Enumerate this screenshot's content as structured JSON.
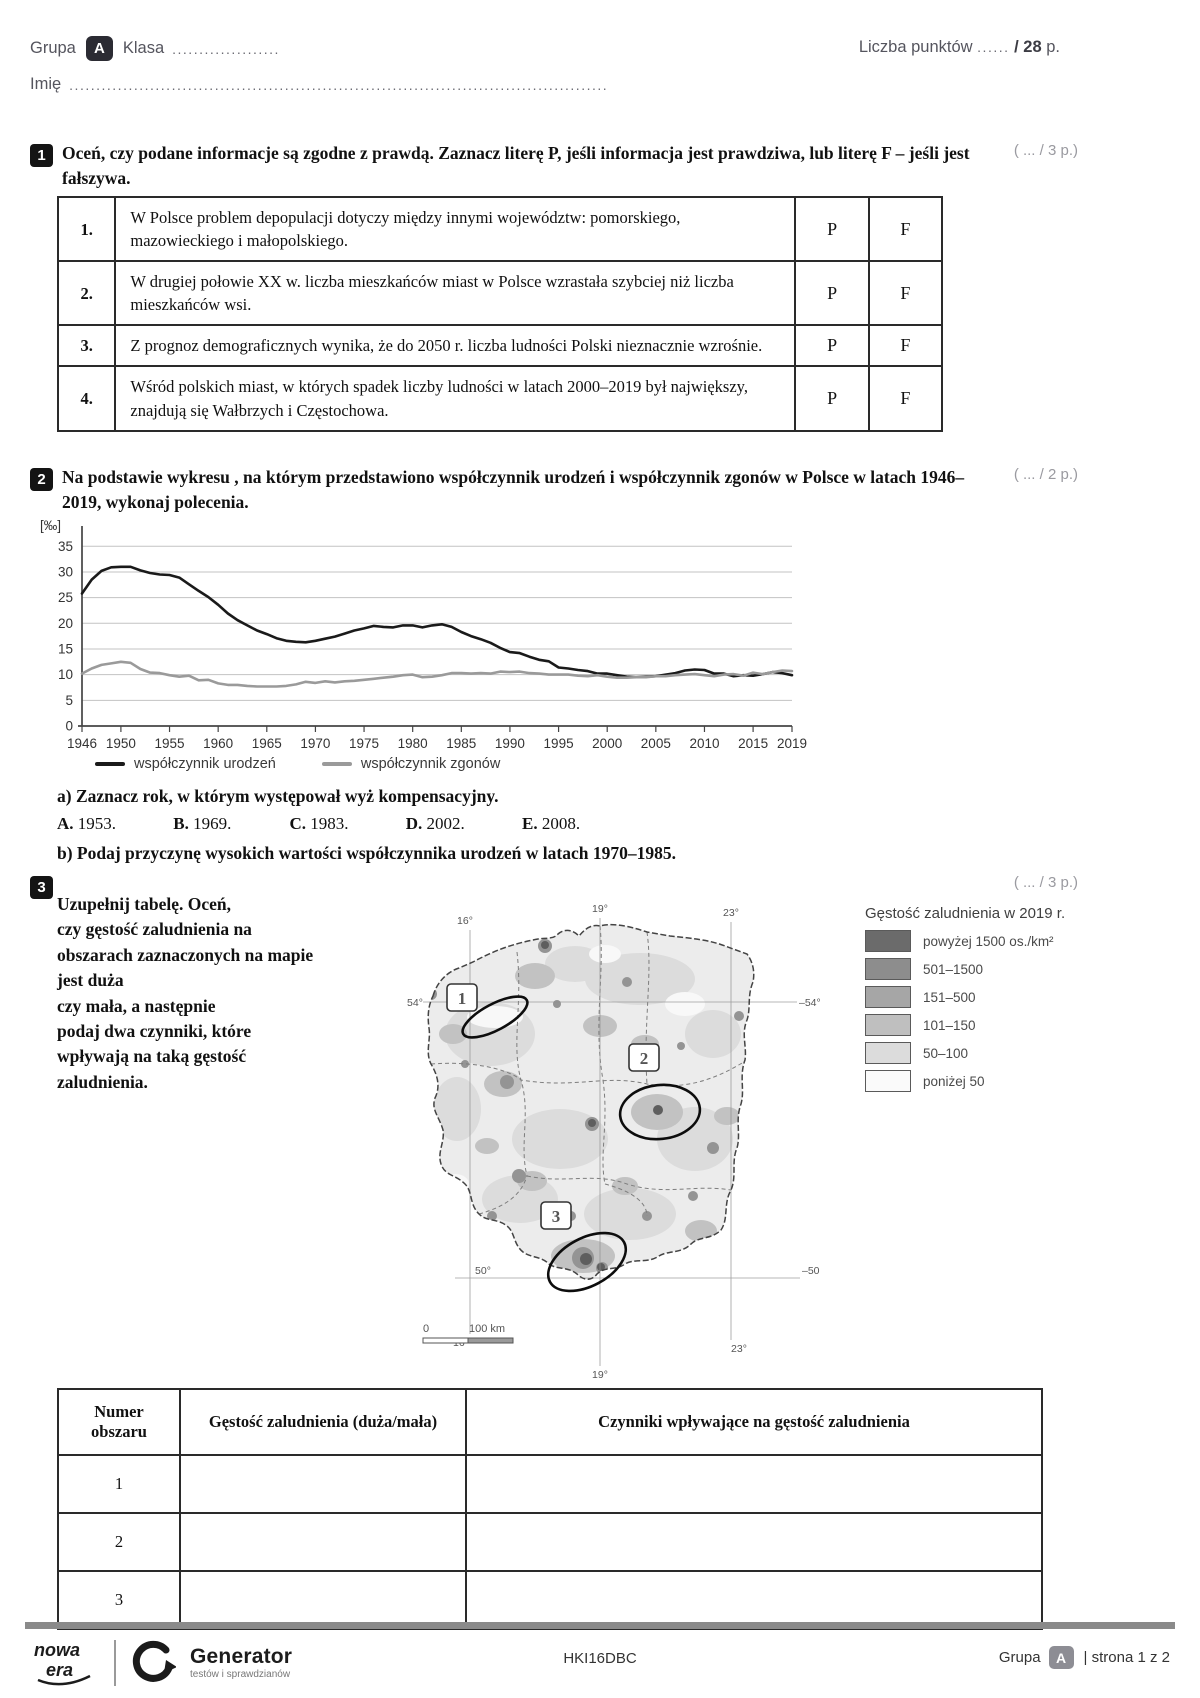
{
  "header": {
    "group_label": "Grupa",
    "group_value": "A",
    "class_label": "Klasa",
    "class_dots": "....................",
    "points_prefix": "Liczba punktów",
    "points_dots": "......",
    "points_frac": "/ 28",
    "points_suffix": "p.",
    "name_label": "Imię",
    "name_dots": "...................................................................................................."
  },
  "q1": {
    "number": "1",
    "points": "( ... / 3 p.)",
    "text": "Oceń, czy podane informacje są zgodne z prawdą. Zaznacz literę P, jeśli informacja jest prawdziwa, lub literę F – jeśli jest fałszywa.",
    "rows": [
      {
        "num": "1.",
        "text": "W Polsce problem depopulacji dotyczy między innymi województw: pomorskiego, mazowieckiego i małopolskiego.",
        "p": "P",
        "f": "F"
      },
      {
        "num": "2.",
        "text": "W drugiej połowie XX w. liczba mieszkańców miast w Polsce wzrastała szybciej niż liczba mieszkańców wsi.",
        "p": "P",
        "f": "F"
      },
      {
        "num": "3.",
        "text": "Z prognoz demograficznych wynika, że do 2050 r. liczba ludności Polski nieznacznie wzrośnie.",
        "p": "P",
        "f": "F"
      },
      {
        "num": "4.",
        "text": "Wśród polskich miast, w których spadek liczby ludności w latach 2000–2019 był największy, znajdują się Wałbrzych i Częstochowa.",
        "p": "P",
        "f": "F"
      }
    ]
  },
  "q2": {
    "number": "2",
    "points": "( ... / 2 p.)",
    "text": "Na podstawie wykresu , na którym przedstawiono współczynnik urodzeń i współczynnik zgonów w Polsce w latach 1946–2019, wykonaj polecenia.",
    "a_text": "a) Zaznacz rok, w którym występował wyż kompensacyjny.",
    "options": [
      {
        "letter": "A.",
        "value": "1953."
      },
      {
        "letter": "B.",
        "value": "1969."
      },
      {
        "letter": "C.",
        "value": "1983."
      },
      {
        "letter": "D.",
        "value": "2002."
      },
      {
        "letter": "E.",
        "value": "2008."
      }
    ],
    "b_text": "b) Podaj przyczynę wysokich wartości współczynnika urodzeń w latach 1970–1985."
  },
  "chart_data": {
    "type": "line",
    "title": "Współczynnik urodzeń i współczynnik zgonów w Polsce w latach 1946–2019",
    "unit_label": "[‰]",
    "x_start": 1946,
    "x_ticks": [
      1946,
      1950,
      1955,
      1960,
      1965,
      1970,
      1975,
      1980,
      1985,
      1990,
      1995,
      2000,
      2005,
      2010,
      2015,
      2019
    ],
    "y_ticks": [
      0,
      5,
      10,
      15,
      20,
      25,
      30,
      35
    ],
    "ylim": [
      0,
      37
    ],
    "grid": true,
    "legend_position": "bottom",
    "series": [
      {
        "name": "współczynnik urodzeń",
        "color": "#1a1a1a",
        "values": [
          25.8,
          28.5,
          30.2,
          30.9,
          31.0,
          31.0,
          30.3,
          29.8,
          29.5,
          29.4,
          28.9,
          27.6,
          26.3,
          25.1,
          23.6,
          21.9,
          20.6,
          19.6,
          18.6,
          17.9,
          17.1,
          16.6,
          16.4,
          16.3,
          16.6,
          17.0,
          17.4,
          18.0,
          18.6,
          19.0,
          19.5,
          19.3,
          19.2,
          19.6,
          19.6,
          19.2,
          19.6,
          19.8,
          19.3,
          18.3,
          17.5,
          16.9,
          16.2,
          15.2,
          14.4,
          14.2,
          13.5,
          12.9,
          12.6,
          11.4,
          11.2,
          10.9,
          10.7,
          10.2,
          10.2,
          9.9,
          9.6,
          9.5,
          9.6,
          9.7,
          10.0,
          10.3,
          10.8,
          11.0,
          10.9,
          10.2,
          10.2,
          9.7,
          9.9,
          9.8,
          10.1,
          10.5,
          10.3,
          9.9
        ]
      },
      {
        "name": "współczynnik zgonów",
        "color": "#9a9a9a",
        "values": [
          10.2,
          11.2,
          11.9,
          12.2,
          12.5,
          12.3,
          11.1,
          10.4,
          10.3,
          9.9,
          9.6,
          9.8,
          8.9,
          9.0,
          8.3,
          8.0,
          8.0,
          7.8,
          7.7,
          7.7,
          7.7,
          7.8,
          8.1,
          8.6,
          8.4,
          8.7,
          8.5,
          8.7,
          8.8,
          9.0,
          9.2,
          9.4,
          9.6,
          9.9,
          10.0,
          9.5,
          9.6,
          9.9,
          10.3,
          10.3,
          10.2,
          10.3,
          10.2,
          10.6,
          10.5,
          10.6,
          10.3,
          10.2,
          10.0,
          10.0,
          10.0,
          9.8,
          9.7,
          9.9,
          9.6,
          9.4,
          9.4,
          9.5,
          9.5,
          9.7,
          9.7,
          9.9,
          10.0,
          10.1,
          9.9,
          9.7,
          10.0,
          10.1,
          9.8,
          10.4,
          10.1,
          10.5,
          10.8,
          10.7
        ]
      }
    ]
  },
  "q3": {
    "number": "3",
    "points": "( ... / 3 p.)",
    "text_lines": [
      "Uzupełnij tabelę. Oceń,",
      "czy gęstość zaludnienia na",
      "obszarach zaznaczonych na mapie",
      "jest duża",
      "czy mała, a następnie",
      "podaj dwa czynniki, które",
      "wpływają na taką gęstość",
      "zaludnienia."
    ],
    "map": {
      "markers": [
        "1",
        "2",
        "3"
      ],
      "coord_labels": {
        "top_left_meridian": "16°",
        "top_meridian": "19°",
        "top_right_meridian": "23°",
        "left_parallel_top": "54°",
        "right_parallel_top": "–54°",
        "left_parallel_bottom": "50°",
        "right_parallel_bottom": "–50°",
        "bottom_left_meridian": "16°",
        "bottom_meridian": "19°",
        "bottom_right_meridian": "23°"
      },
      "scale": {
        "zero": "0",
        "hundred": "100 km"
      }
    },
    "legend": {
      "title": "Gęstość zaludnienia w 2019 r.",
      "items": [
        {
          "label": "powyżej 1500 os./km²",
          "color": "#6b6b6b"
        },
        {
          "label": "501–1500",
          "color": "#8d8d8d"
        },
        {
          "label": "151–500",
          "color": "#a6a6a6"
        },
        {
          "label": "101–150",
          "color": "#bfbfbf"
        },
        {
          "label": "50–100",
          "color": "#dcdcdc"
        },
        {
          "label": "poniżej 50",
          "color": "#fafafa"
        }
      ]
    },
    "table": {
      "headers": [
        "Numer obszaru",
        "Gęstość zaludnienia (duża/mała)",
        "Czynniki wpływające na gęstość zaludnienia"
      ],
      "rows": [
        "1",
        "2",
        "3"
      ]
    }
  },
  "footer": {
    "brand_top": "nowa",
    "brand_bottom": "era",
    "generator_title": "Generator",
    "generator_subtitle": "testów i sprawdzianów",
    "code": "HKI16DBC",
    "group_label": "Grupa",
    "group_value": "A",
    "page_info": "| strona 1 z 2"
  }
}
